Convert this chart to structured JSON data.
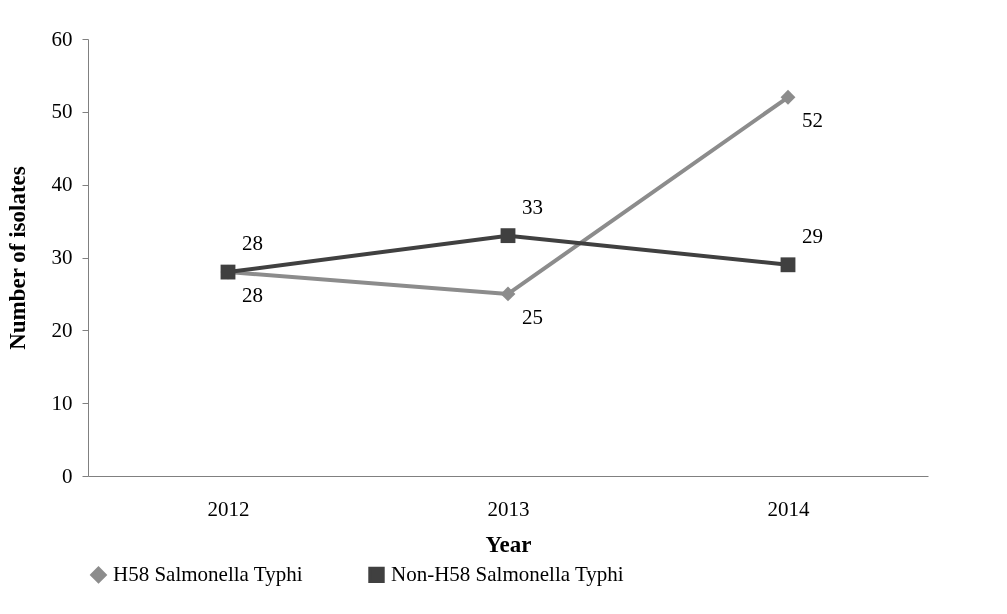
{
  "chart_data": {
    "type": "line",
    "xlabel": "Year",
    "ylabel": "Number of isolates",
    "categories": [
      "2012",
      "2013",
      "2014"
    ],
    "series": [
      {
        "name": "H58 Salmonella Typhi",
        "color": "#8c8c8c",
        "marker": "diamond",
        "values": [
          28,
          25,
          52
        ]
      },
      {
        "name": "Non-H58 Salmonella Typhi",
        "color": "#404040",
        "marker": "square",
        "values": [
          28,
          33,
          29
        ]
      }
    ],
    "ylim": [
      0,
      60
    ],
    "yticks": [
      0,
      10,
      20,
      30,
      40,
      50,
      60
    ],
    "grid": false,
    "legend": "bottom",
    "data_labels": true
  }
}
